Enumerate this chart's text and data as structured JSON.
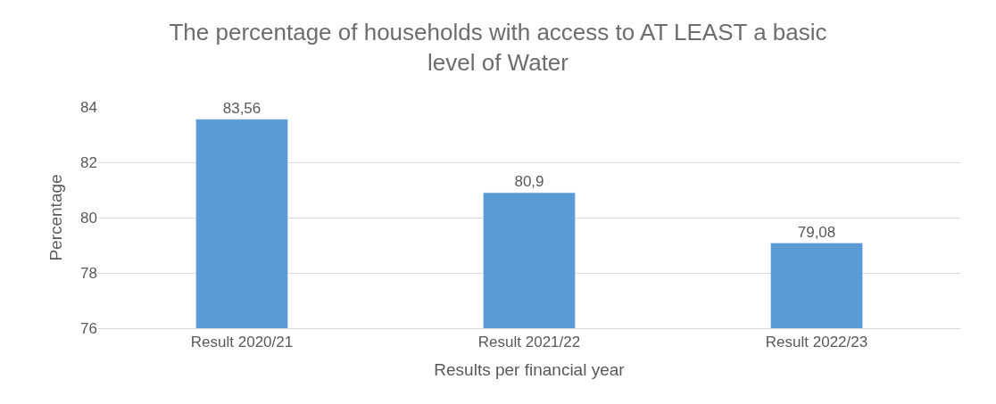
{
  "chart_data": {
    "type": "bar",
    "title": "The percentage of households with access to AT LEAST a basic level of Water",
    "xlabel": "Results per financial year",
    "ylabel": "Percentage",
    "categories": [
      "Result 2020/21",
      "Result 2021/22",
      "Result 2022/23"
    ],
    "values": [
      83.56,
      80.9,
      79.08
    ],
    "value_labels": [
      "83,56",
      "80,9",
      "79,08"
    ],
    "color": "#5b9bd5",
    "ylim": [
      76,
      84
    ],
    "yticks": [
      76,
      78,
      80,
      82,
      84
    ],
    "grid": "y"
  }
}
